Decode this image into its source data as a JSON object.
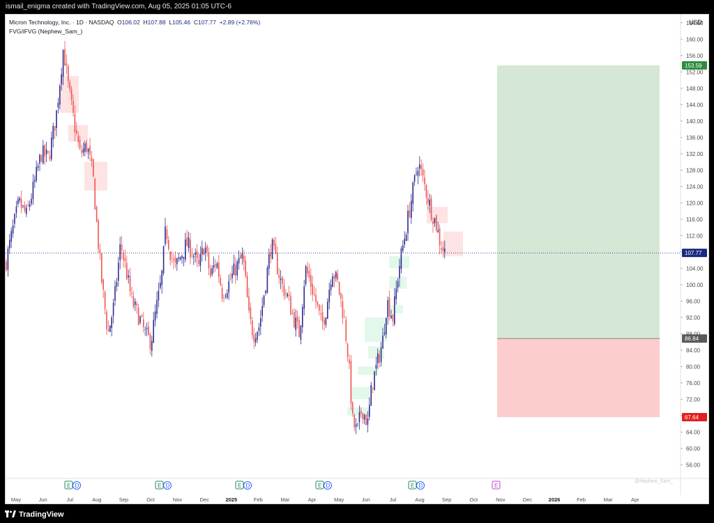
{
  "header": {
    "credit": "ismail_enigma created with TradingView.com, Aug 05, 2025 01:05 UTC-6"
  },
  "legend": {
    "symbol": "Micron Technology, Inc. · 1D · NASDAQ",
    "o_label": "O",
    "o_value": "106.02",
    "h_label": "H",
    "h_value": "107.88",
    "l_label": "L",
    "l_value": "105.46",
    "c_label": "C",
    "c_value": "107.77",
    "change": "+2.89 (+2.76%)",
    "indicator": "FVG/iFVG (Nephew_Sam_)"
  },
  "footer": {
    "brand": "TradingView"
  },
  "colors": {
    "up": "#2c2a8f",
    "down": "#ef5350",
    "profit_zone": "#d5e8d5",
    "loss_zone": "#fdcdcd",
    "bear_fvg": "#fde3e3",
    "bull_fvg": "#e2f8ea",
    "axis_text": "#4a4a4a",
    "price_line": "#1b2a80"
  },
  "chart_data": {
    "type": "candlestick",
    "currency_label": "USD",
    "y_ticks": [
      56,
      60,
      64,
      68,
      72,
      76,
      80,
      84,
      88,
      92,
      96,
      100,
      104,
      108,
      112,
      116,
      120,
      124,
      128,
      132,
      136,
      140,
      144,
      148,
      152,
      156,
      160,
      164
    ],
    "ylim": [
      53,
      166
    ],
    "x_ticks": [
      "May",
      "Jun",
      "Jul",
      "Aug",
      "Sep",
      "Oct",
      "Nov",
      "Dec",
      "2025",
      "Feb",
      "Mar",
      "Apr",
      "May",
      "Jun",
      "Jul",
      "Aug",
      "Sep",
      "Oct",
      "Nov",
      "Dec",
      "2026",
      "Feb",
      "Mar",
      "Apr"
    ],
    "bold_ticks": [
      "2025",
      "2026"
    ],
    "last_price": 107.77,
    "last_price_label": "107.77",
    "position": {
      "entry": 86.84,
      "entry_label": "86.84",
      "target": 153.59,
      "target_label": "153.59",
      "stop": 67.64,
      "stop_label": "67.64",
      "start": "Sep 2025",
      "end": "Apr 2026"
    },
    "earnings_markers": [
      {
        "month": "Jun 2024",
        "label": "E"
      },
      {
        "month": "Sep 2024",
        "label": "E"
      },
      {
        "month": "Dec 2024",
        "label": "E"
      },
      {
        "month": "Mar 2025",
        "label": "E"
      },
      {
        "month": "Jun 2025",
        "label": "E"
      },
      {
        "month": "Sep 2025",
        "label": "E",
        "upcoming": true
      }
    ],
    "dividend_label": "D",
    "price_path": [
      [
        0,
        105
      ],
      [
        8,
        112
      ],
      [
        18,
        120
      ],
      [
        28,
        117
      ],
      [
        38,
        124
      ],
      [
        48,
        132
      ],
      [
        58,
        131
      ],
      [
        68,
        141
      ],
      [
        78,
        158
      ],
      [
        84,
        149
      ],
      [
        92,
        140
      ],
      [
        100,
        132
      ],
      [
        110,
        134
      ],
      [
        118,
        126
      ],
      [
        124,
        112
      ],
      [
        130,
        100
      ],
      [
        138,
        88
      ],
      [
        146,
        95
      ],
      [
        155,
        110
      ],
      [
        162,
        104
      ],
      [
        170,
        96
      ],
      [
        180,
        92
      ],
      [
        188,
        88
      ],
      [
        196,
        86
      ],
      [
        202,
        93
      ],
      [
        210,
        101
      ],
      [
        216,
        114
      ],
      [
        222,
        108
      ],
      [
        228,
        104
      ],
      [
        236,
        107
      ],
      [
        244,
        110
      ],
      [
        252,
        108
      ],
      [
        260,
        104
      ],
      [
        268,
        110
      ],
      [
        276,
        102
      ],
      [
        284,
        106
      ],
      [
        292,
        98
      ],
      [
        300,
        100
      ],
      [
        310,
        104
      ],
      [
        320,
        107
      ],
      [
        328,
        92
      ],
      [
        334,
        88
      ],
      [
        342,
        90
      ],
      [
        350,
        100
      ],
      [
        358,
        110
      ],
      [
        364,
        106
      ],
      [
        372,
        100
      ],
      [
        380,
        97
      ],
      [
        388,
        92
      ],
      [
        396,
        88
      ],
      [
        404,
        104
      ],
      [
        410,
        101
      ],
      [
        418,
        96
      ],
      [
        426,
        90
      ],
      [
        432,
        94
      ],
      [
        440,
        104
      ],
      [
        448,
        100
      ],
      [
        456,
        92
      ],
      [
        462,
        82
      ],
      [
        468,
        66
      ],
      [
        474,
        64
      ],
      [
        480,
        70
      ],
      [
        488,
        66
      ],
      [
        494,
        76
      ],
      [
        500,
        80
      ],
      [
        508,
        86
      ],
      [
        514,
        96
      ],
      [
        522,
        92
      ],
      [
        530,
        104
      ],
      [
        536,
        110
      ],
      [
        542,
        116
      ],
      [
        550,
        124
      ],
      [
        556,
        130
      ],
      [
        562,
        126
      ],
      [
        568,
        122
      ],
      [
        574,
        118
      ],
      [
        580,
        115
      ],
      [
        586,
        110
      ],
      [
        592,
        108
      ]
    ],
    "fvg_bear": [
      {
        "x0": 78,
        "x1": 105,
        "y0": 142,
        "y1": 151
      },
      {
        "x0": 90,
        "x1": 118,
        "y0": 135,
        "y1": 139
      },
      {
        "x0": 113,
        "x1": 146,
        "y0": 123,
        "y1": 130
      },
      {
        "x0": 604,
        "x1": 634,
        "y0": 115,
        "y1": 119
      },
      {
        "x0": 628,
        "x1": 656,
        "y0": 107,
        "y1": 113
      }
    ],
    "fvg_bull": [
      {
        "x0": 550,
        "x1": 579,
        "y0": 104,
        "y1": 107
      },
      {
        "x0": 550,
        "x1": 575,
        "y0": 99,
        "y1": 102
      },
      {
        "x0": 550,
        "x1": 570,
        "y0": 93,
        "y1": 95
      },
      {
        "x0": 515,
        "x1": 547,
        "y0": 86,
        "y1": 92
      },
      {
        "x0": 520,
        "x1": 543,
        "y0": 82,
        "y1": 85
      },
      {
        "x0": 505,
        "x1": 535,
        "y0": 78,
        "y1": 80
      },
      {
        "x0": 495,
        "x1": 522,
        "y0": 72,
        "y1": 75
      },
      {
        "x0": 490,
        "x1": 522,
        "y0": 68,
        "y1": 70
      }
    ],
    "watermark": "@Nephew_Sam_"
  }
}
